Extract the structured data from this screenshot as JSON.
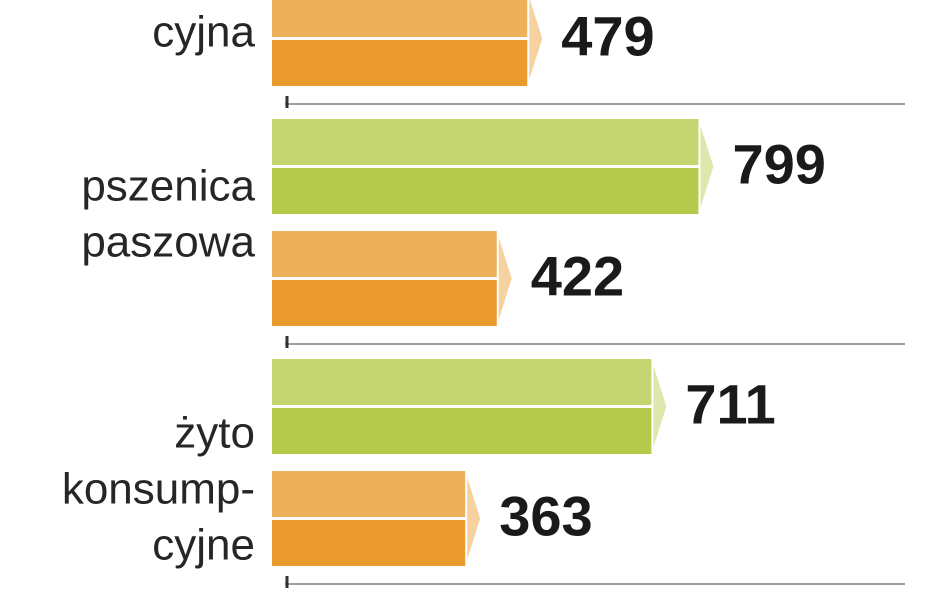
{
  "chart_data": {
    "type": "bar",
    "orientation": "horizontal",
    "categories": [
      [
        "cyjna"
      ],
      [
        "pszenica",
        "paszowa"
      ],
      [
        "żyto",
        "konsump-",
        "cyjne"
      ]
    ],
    "series": [
      {
        "color": "#b5c94a",
        "values": [
          null,
          799,
          711
        ]
      },
      {
        "color": "#eb9a2e",
        "values": [
          479,
          422,
          363
        ]
      }
    ]
  }
}
